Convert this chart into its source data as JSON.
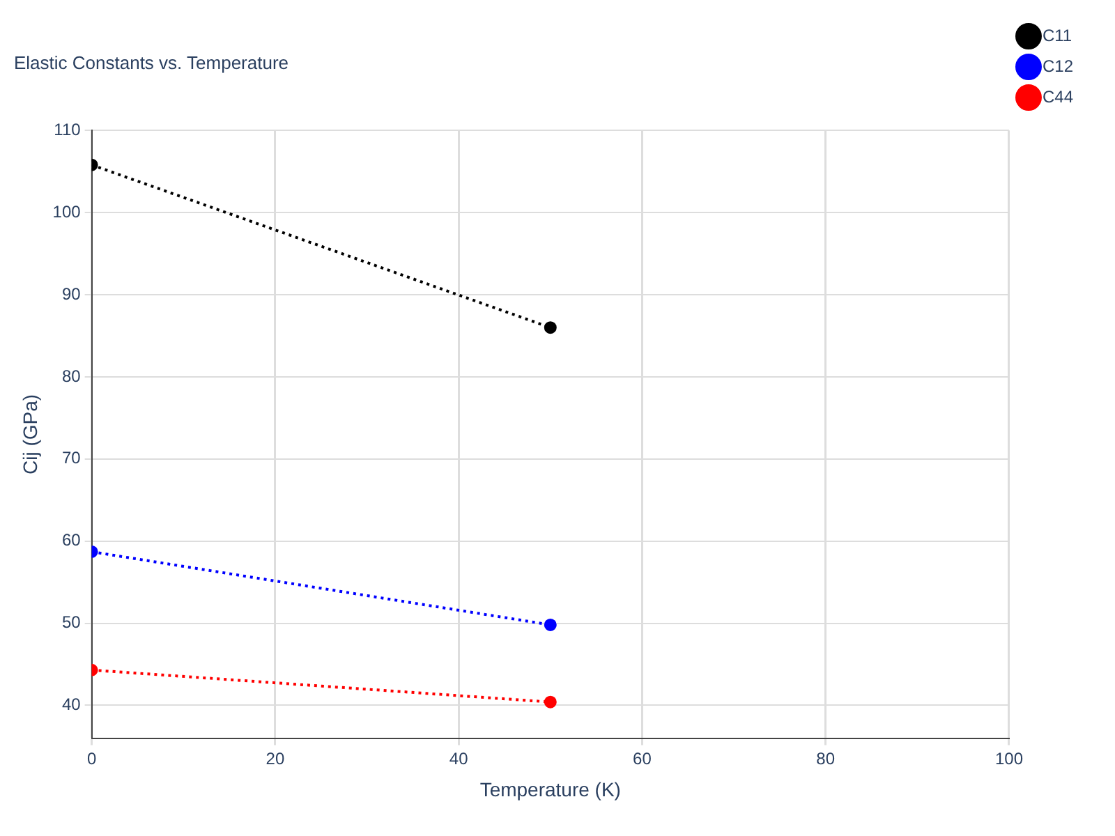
{
  "chart_data": {
    "type": "line",
    "title": "Elastic Constants vs. Temperature",
    "xlabel": "Temperature (K)",
    "ylabel": "Cij (GPa)",
    "x": [
      0,
      50
    ],
    "series": [
      {
        "name": "C11",
        "color": "#000000",
        "values": [
          105.8,
          86.0
        ]
      },
      {
        "name": "C12",
        "color": "#0000ff",
        "values": [
          58.7,
          49.8
        ]
      },
      {
        "name": "C44",
        "color": "#ff0000",
        "values": [
          44.3,
          40.4
        ]
      }
    ],
    "xlim": [
      0,
      100
    ],
    "xticks": [
      0,
      20,
      40,
      60,
      80,
      100
    ],
    "ylim": [
      36,
      110
    ],
    "yticks": [
      40,
      50,
      60,
      70,
      80,
      90,
      100,
      110
    ],
    "grid": true,
    "legend": "top right",
    "marker": "circle",
    "line_style": "dotted"
  }
}
